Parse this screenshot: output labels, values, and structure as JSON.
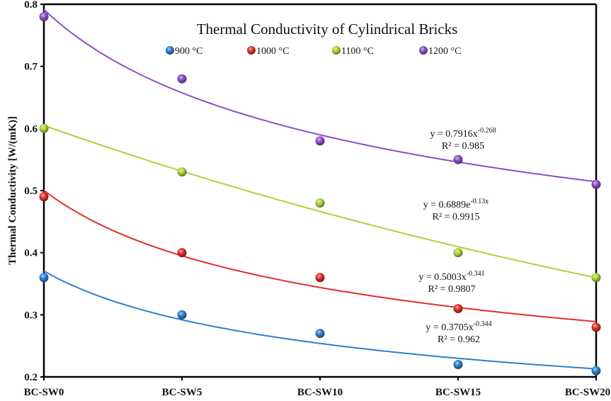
{
  "chart_data": {
    "type": "scatter",
    "title": "Thermal Conductivity of Cylindrical Bricks",
    "xlabel": "",
    "ylabel": "Thermal Conductivity [W/(mK)]",
    "categories": [
      "BC-SW0",
      "BC-SW5",
      "BC-SW10",
      "BC-SW15",
      "BC-SW20"
    ],
    "ylim": [
      0.2,
      0.8
    ],
    "yticks": [
      0.2,
      0.3,
      0.4,
      0.5,
      0.6,
      0.7,
      0.8
    ],
    "ytick_labels": [
      "0.2",
      "0.3",
      "0.4",
      "0.5",
      "0.6",
      "0.7",
      "0.8"
    ],
    "grid": false,
    "legend_position": "top-center",
    "series": [
      {
        "name": "900 °C",
        "color": "#2f7fd0",
        "values": [
          0.36,
          0.3,
          0.27,
          0.22,
          0.21
        ],
        "trendline": {
          "type": "power",
          "a": 0.3705,
          "b": -0.344,
          "equation": "y = 0.3705x",
          "exponent": "-0.344",
          "r2": "R² = 0.962"
        }
      },
      {
        "name": "1000 °C",
        "color": "#e0302a",
        "values": [
          0.49,
          0.4,
          0.36,
          0.31,
          0.28
        ],
        "trendline": {
          "type": "power",
          "a": 0.5003,
          "b": -0.341,
          "equation": "y = 0.5003x",
          "exponent": "-0.341",
          "r2": "R² = 0.9807"
        }
      },
      {
        "name": "1100 °C",
        "color": "#a8d43a",
        "values": [
          0.6,
          0.53,
          0.48,
          0.4,
          0.36
        ],
        "trendline": {
          "type": "exponential",
          "a": 0.6889,
          "b": -0.13,
          "equation": "y = 0.6889e",
          "exponent": "-0.13x",
          "r2": "R² = 0.9915"
        }
      },
      {
        "name": "1200 °C",
        "color": "#8a4fc8",
        "values": [
          0.78,
          0.68,
          0.58,
          0.55,
          0.51
        ],
        "trendline": {
          "type": "power",
          "a": 0.7916,
          "b": -0.268,
          "equation": "y = 0.7916x",
          "exponent": "-0.268",
          "r2": "R² = 0.985"
        }
      }
    ]
  }
}
